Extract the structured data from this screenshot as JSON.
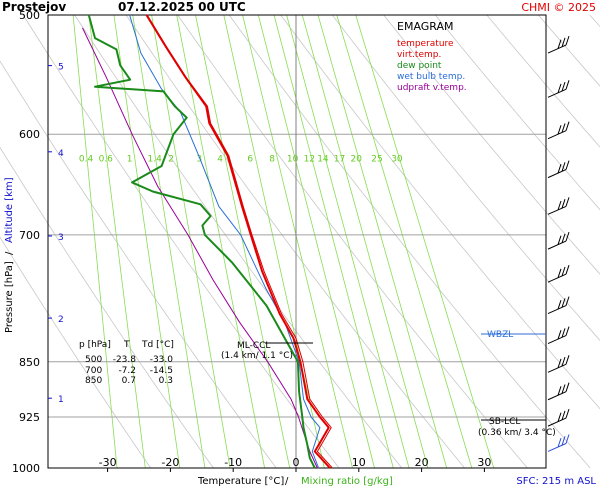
{
  "header": {
    "station": "Prostejov",
    "datetime": "07.12.2025 00 UTC",
    "copyright": "CHMI © 2025"
  },
  "legend": {
    "title": "EMAGRAM",
    "items": [
      {
        "label": "temperature",
        "color": "#e00000"
      },
      {
        "label": "virt.temp.",
        "color": "#e00000"
      },
      {
        "label": "dew point",
        "color": "#1a8a1a"
      },
      {
        "label": "wet bulb temp.",
        "color": "#2a6ed8"
      },
      {
        "label": "udpraft v.temp.",
        "color": "#990099"
      }
    ]
  },
  "table": {
    "header": [
      "p [hPa]",
      "T",
      "Td [°C]"
    ],
    "rows": [
      [
        "500",
        "-23.8",
        "-33.0"
      ],
      [
        "700",
        "-7.2",
        "-14.5"
      ],
      [
        "850",
        "0.7",
        "0.3"
      ]
    ]
  },
  "annotations": {
    "ml_ccl": "ML-CCL",
    "ml_ccl_value": "(1.4 km/ 1.1 °C)",
    "sb_lcl": "SB-LCL",
    "sb_lcl_value": "(0.36 km/ 3.4 °C)",
    "wbzl": "WBZL",
    "sfc": "SFC: 215 m ASL"
  },
  "axes": {
    "x_label_temp": "Temperature [°C]",
    "x_label_sep": "/",
    "x_label_mix": "Mixing ratio [g/kg]",
    "y_label_pressure": "Pressure [hPa]",
    "y_label_sep": "/",
    "y_label_alt": "Altitude [km]"
  },
  "colors": {
    "temperature": "#e00000",
    "dew_point": "#1a8a1a",
    "wet_bulb": "#2a6ed8",
    "parcel": "#990099",
    "mixing_lines": "#88dd55",
    "dry_adiabats": "#c8c8c8",
    "grid": "#a0a0a0",
    "altitude": "#1010cc"
  },
  "chart_data": {
    "type": "line",
    "title": "EMAGRAM",
    "xlabel": "Temperature [°C] / Mixing ratio [g/kg]",
    "ylabel": "Pressure [hPa] / Altitude [km]",
    "xlim": [
      -35,
      35
    ],
    "ylim": [
      1000,
      500
    ],
    "y_scale": "log",
    "x_ticks": [
      -30,
      -20,
      -10,
      0,
      10,
      20,
      30
    ],
    "y_ticks": [
      500,
      600,
      700,
      850,
      925,
      1000
    ],
    "altitude_ticks_km": [
      1,
      2,
      3,
      4,
      5
    ],
    "mixing_ratio_labels": [
      "0.4",
      "0.6",
      "1",
      "1.4",
      "2",
      "3",
      "4",
      "6",
      "8",
      "10",
      "12",
      "14",
      "17",
      "20",
      "25",
      "30"
    ],
    "series": [
      {
        "name": "temperature",
        "points": [
          [
            5.4,
            1000
          ],
          [
            3.0,
            975
          ],
          [
            5.2,
            940
          ],
          [
            3.8,
            925
          ],
          [
            1.8,
            900
          ],
          [
            0.7,
            850
          ],
          [
            -0.4,
            820
          ],
          [
            -2.6,
            790
          ],
          [
            -5.4,
            740
          ],
          [
            -7.2,
            700
          ],
          [
            -8.6,
            670
          ],
          [
            -10.9,
            620
          ],
          [
            -13.8,
            590
          ],
          [
            -14.3,
            575
          ],
          [
            -17.6,
            550
          ],
          [
            -20.7,
            525
          ],
          [
            -23.8,
            500
          ]
        ]
      },
      {
        "name": "virt.temp.",
        "points": [
          [
            5.8,
            1000
          ],
          [
            3.4,
            975
          ],
          [
            5.6,
            940
          ],
          [
            4.2,
            925
          ],
          [
            2.2,
            900
          ],
          [
            1.1,
            850
          ],
          [
            0,
            820
          ],
          [
            -2.3,
            790
          ],
          [
            -5.1,
            740
          ],
          [
            -7,
            700
          ],
          [
            -8.4,
            670
          ],
          [
            -10.7,
            620
          ],
          [
            -13.6,
            590
          ],
          [
            -14.1,
            575
          ],
          [
            -17.5,
            550
          ],
          [
            -20.6,
            525
          ],
          [
            -23.7,
            500
          ]
        ]
      },
      {
        "name": "dew point",
        "points": [
          [
            3.0,
            1000
          ],
          [
            2.2,
            985
          ],
          [
            1.8,
            965
          ],
          [
            1.2,
            940
          ],
          [
            1.0,
            925
          ],
          [
            0.5,
            890
          ],
          [
            0.3,
            850
          ],
          [
            -4.7,
            780
          ],
          [
            -10.2,
            730
          ],
          [
            -14.5,
            700
          ],
          [
            -14.9,
            690
          ],
          [
            -13.6,
            680
          ],
          [
            -15.2,
            668
          ],
          [
            -22.8,
            655
          ],
          [
            -26.1,
            646
          ],
          [
            -21.4,
            630
          ],
          [
            -19.5,
            600
          ],
          [
            -17.4,
            585
          ],
          [
            -19.3,
            575
          ],
          [
            -21.1,
            562
          ],
          [
            -32,
            558
          ],
          [
            -26.4,
            552
          ],
          [
            -28,
            540
          ],
          [
            -28.6,
            527
          ],
          [
            -32,
            518
          ],
          [
            -33,
            500
          ]
        ]
      },
      {
        "name": "wet bulb temp.",
        "points": [
          [
            3.6,
            1000
          ],
          [
            2.6,
            975
          ],
          [
            3.8,
            940
          ],
          [
            2.4,
            925
          ],
          [
            1.2,
            900
          ],
          [
            0.5,
            850
          ],
          [
            -1.8,
            800
          ],
          [
            -4.8,
            760
          ],
          [
            -8.8,
            700
          ],
          [
            -12.3,
            670
          ],
          [
            -15.5,
            620
          ],
          [
            -18.4,
            580
          ],
          [
            -21.4,
            560
          ],
          [
            -24.7,
            530
          ],
          [
            -26.5,
            500
          ]
        ]
      },
      {
        "name": "udpraft v.temp.",
        "points": [
          [
            3.4,
            1000
          ],
          [
            2.2,
            975
          ],
          [
            1.3,
            950
          ],
          [
            0.4,
            925
          ],
          [
            -0.8,
            900
          ],
          [
            -4.5,
            850
          ],
          [
            -9,
            800
          ],
          [
            -13.2,
            750
          ],
          [
            -17.2,
            700
          ],
          [
            -22,
            650
          ],
          [
            -26.1,
            600
          ],
          [
            -30.2,
            550
          ],
          [
            -34,
            510
          ]
        ]
      }
    ],
    "wind_barbs_count": 13,
    "grid": true
  }
}
